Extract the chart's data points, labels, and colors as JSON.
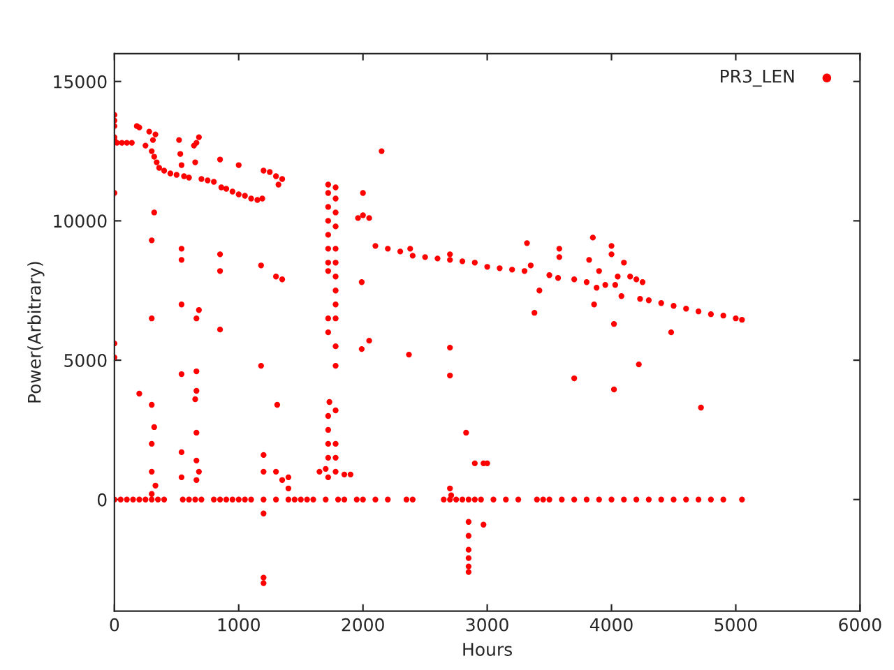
{
  "chart_data": {
    "type": "scatter",
    "xlabel": "Hours",
    "ylabel": "Power(Arbitrary)",
    "xlim": [
      0,
      6000
    ],
    "xticks": [
      0,
      1000,
      2000,
      3000,
      4000,
      5000,
      6000
    ],
    "ylim": [
      -4000,
      16000
    ],
    "yticks": [
      0,
      5000,
      10000,
      15000
    ],
    "grid": false,
    "legend": "top right",
    "marker": "circle",
    "series": [
      {
        "name": "PR3_LEN",
        "color": "#ff0000",
        "x": [
          0,
          0,
          0,
          0,
          0,
          20,
          60,
          100,
          140,
          180,
          200,
          250,
          280,
          300,
          310,
          320,
          330,
          340,
          360,
          400,
          450,
          500,
          520,
          530,
          540,
          560,
          600,
          640,
          650,
          660,
          680,
          700,
          750,
          800,
          850,
          860,
          900,
          950,
          1000,
          1000,
          1050,
          1100,
          1150,
          1190,
          1200,
          1250,
          1300,
          1320,
          1350,
          1720,
          1720,
          1720,
          1720,
          1720,
          1720,
          1720,
          1720,
          1720,
          1720,
          1780,
          1780,
          1780,
          1780,
          1780,
          1780,
          1780,
          1780,
          1780,
          1780,
          1780,
          1780,
          1960,
          2000,
          2000,
          2050,
          2100,
          2150,
          2200,
          2300,
          2380,
          2400,
          2500,
          2600,
          2700,
          2700,
          2800,
          2900,
          3000,
          3100,
          3200,
          3300,
          3320,
          3350,
          3380,
          3420,
          3500,
          3570,
          3580,
          3580,
          3700,
          3800,
          3820,
          3850,
          3860,
          3880,
          3900,
          3950,
          4000,
          4000,
          4030,
          4050,
          4080,
          4100,
          4150,
          4200,
          4230,
          4250,
          4300,
          4400,
          4500,
          4600,
          4700,
          4800,
          4900,
          5000,
          5050,
          3700,
          4020,
          4220,
          4480,
          4720,
          4020,
          2700,
          2700,
          2370,
          2050,
          1990,
          1990,
          1300,
          1350,
          1180,
          1180,
          850,
          850,
          850,
          680,
          660,
          660,
          660,
          650,
          540,
          540,
          540,
          540,
          300,
          300,
          320,
          200,
          0,
          0,
          0,
          1310,
          1730,
          1780,
          2830,
          2970,
          2900,
          3000,
          300,
          300,
          300,
          320,
          330,
          300,
          540,
          540,
          660,
          660,
          660,
          680,
          1200,
          1200,
          1200,
          1300,
          1350,
          1400,
          1400,
          1650,
          1700,
          1720,
          1720,
          1720,
          1720,
          1720,
          1780,
          1780,
          1780,
          1850,
          1900,
          2700,
          2710,
          1200,
          1200,
          1200,
          2850,
          2850,
          2850,
          2850,
          2850,
          2850,
          2970,
          0,
          50,
          100,
          150,
          200,
          250,
          300,
          350,
          400,
          550,
          600,
          650,
          700,
          800,
          850,
          900,
          950,
          1000,
          1050,
          1100,
          1300,
          1400,
          1450,
          1500,
          1550,
          1600,
          1700,
          1800,
          1850,
          1950,
          2000,
          2100,
          2200,
          2350,
          2400,
          2650,
          2700,
          2750,
          2800,
          2850,
          2900,
          2950,
          3050,
          3150,
          3250,
          3400,
          3450,
          3500,
          3600,
          3700,
          3800,
          3900,
          4000,
          4100,
          4200,
          4300,
          4400,
          4500,
          4600,
          4700,
          4800,
          4900,
          5050
        ],
        "values": [
          13800,
          13600,
          13400,
          13000,
          12900,
          12800,
          12800,
          12800,
          12800,
          13400,
          13350,
          12700,
          13200,
          12500,
          12900,
          12300,
          13100,
          12100,
          11900,
          11800,
          11700,
          11650,
          12900,
          12400,
          12000,
          11600,
          11550,
          12700,
          12100,
          12800,
          13000,
          11500,
          11450,
          11400,
          12200,
          11200,
          11150,
          11050,
          12000,
          10950,
          10900,
          10800,
          10750,
          10800,
          11800,
          11750,
          11600,
          11300,
          11500,
          11300,
          11000,
          10500,
          10000,
          9500,
          9000,
          8500,
          8200,
          6500,
          6000,
          11200,
          10800,
          10300,
          9800,
          9000,
          8500,
          8000,
          7500,
          7000,
          6500,
          5500,
          4800,
          10100,
          11000,
          10200,
          10100,
          9100,
          12500,
          9000,
          8900,
          9000,
          8750,
          8700,
          8650,
          8600,
          8800,
          8550,
          8500,
          8350,
          8300,
          8250,
          8200,
          9200,
          8400,
          6700,
          7500,
          8050,
          7950,
          9000,
          8700,
          7900,
          7800,
          8600,
          9400,
          7000,
          7600,
          8200,
          7700,
          8800,
          9100,
          7700,
          8000,
          7300,
          8500,
          8000,
          7900,
          7200,
          7800,
          7150,
          7050,
          6950,
          6850,
          6750,
          6650,
          6600,
          6500,
          6450,
          4350,
          3950,
          4850,
          6000,
          3300,
          6300,
          5450,
          4450,
          5200,
          5700,
          5400,
          7800,
          8000,
          7900,
          8400,
          4800,
          8800,
          6100,
          8200,
          6800,
          6500,
          4600,
          3900,
          3600,
          4500,
          7000,
          8600,
          9000,
          9300,
          6500,
          10300,
          3800,
          11000,
          5600,
          5100,
          3400,
          3500,
          3200,
          2400,
          1300,
          1300,
          1300,
          1000,
          2000,
          3400,
          2600,
          500,
          200,
          1700,
          800,
          2400,
          1400,
          700,
          1000,
          1600,
          1000,
          0,
          1000,
          700,
          800,
          400,
          1000,
          1100,
          3000,
          2500,
          2000,
          1500,
          800,
          2000,
          1500,
          1000,
          900,
          900,
          400,
          150,
          -500,
          -2800,
          -3000,
          -800,
          -1300,
          -1800,
          -2100,
          -2400,
          -2600,
          -900,
          0,
          0,
          0,
          0,
          0,
          0,
          0,
          0,
          0,
          0,
          0,
          0,
          0,
          0,
          0,
          0,
          0,
          0,
          0,
          0,
          0,
          0,
          0,
          0,
          0,
          0,
          0,
          0,
          0,
          0,
          0,
          0,
          0,
          0,
          0,
          0,
          0,
          0,
          0,
          0,
          0,
          0,
          0,
          0,
          0,
          0,
          0,
          0,
          0,
          0,
          0,
          0,
          0,
          0,
          0,
          0,
          0,
          0,
          0,
          0,
          0,
          0,
          0
        ]
      }
    ]
  }
}
